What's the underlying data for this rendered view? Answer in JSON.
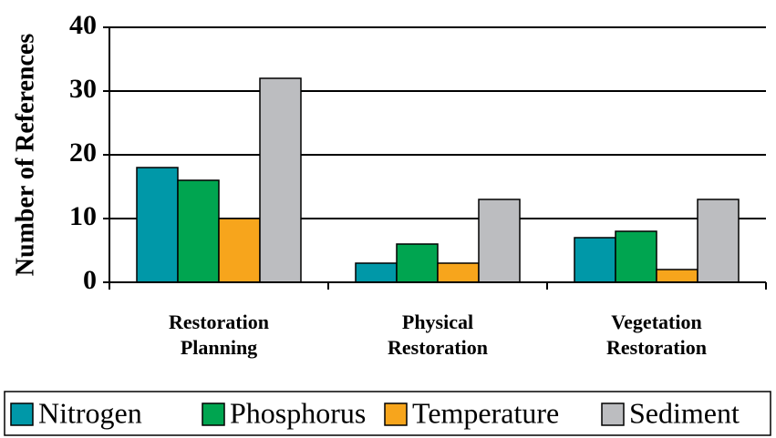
{
  "chart_data": {
    "type": "bar",
    "y_label": "Number of References",
    "categories": [
      "Restoration Planning",
      "Physical Restoration",
      "Vegetation Restoration"
    ],
    "series": [
      {
        "name": "Nitrogen",
        "color": "#0098a8",
        "values": [
          18,
          3,
          7
        ]
      },
      {
        "name": "Phosphorus",
        "color": "#00a550",
        "values": [
          16,
          6,
          8
        ]
      },
      {
        "name": "Temperature",
        "color": "#f7a51c",
        "values": [
          10,
          3,
          2
        ]
      },
      {
        "name": "Sediment",
        "color": "#bcbdc0",
        "values": [
          32,
          13,
          13
        ]
      }
    ],
    "ylim": [
      0,
      40
    ],
    "yticks": [
      0,
      10,
      20,
      30,
      40
    ],
    "grid": true,
    "legend": "bottom"
  }
}
